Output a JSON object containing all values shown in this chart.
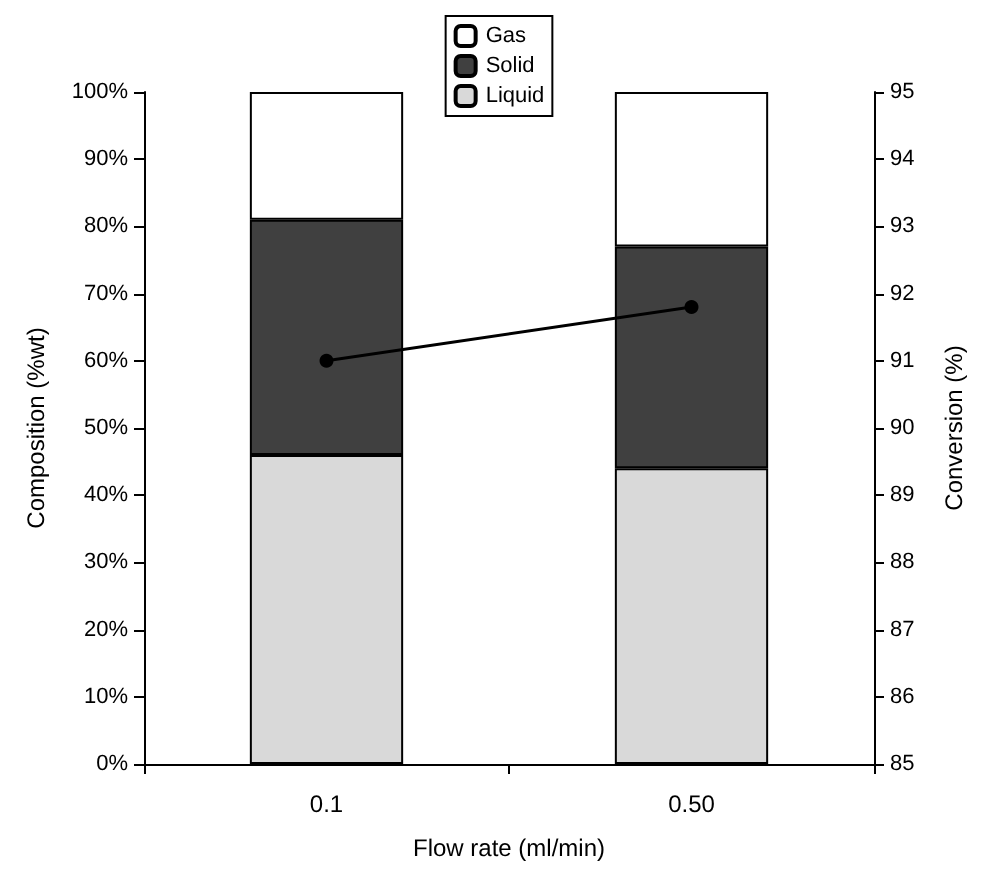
{
  "chart_data": {
    "type": "bar",
    "stacked": true,
    "xlabel": "Flow rate (ml/min)",
    "ylabel": "Composition (%wt)",
    "y2label": "Conversion (%)",
    "categories": [
      "0.1",
      "0.50"
    ],
    "series": [
      {
        "name": "Liquid",
        "color": "#d9d9d9",
        "values": [
          46,
          44
        ]
      },
      {
        "name": "Solid",
        "color": "#404040",
        "values": [
          35,
          33
        ]
      },
      {
        "name": "Gas",
        "color": "#ffffff",
        "values": [
          19,
          23
        ]
      },
      {
        "type": "line",
        "axis": "y2",
        "color": "#000000",
        "values": [
          91.0,
          91.8
        ],
        "marker": "circle"
      }
    ],
    "ylim": [
      0,
      100
    ],
    "yticks": [
      {
        "value": 0,
        "label": "0%"
      },
      {
        "value": 10,
        "label": "10%"
      },
      {
        "value": 20,
        "label": "20%"
      },
      {
        "value": 30,
        "label": "30%"
      },
      {
        "value": 40,
        "label": "40%"
      },
      {
        "value": 50,
        "label": "50%"
      },
      {
        "value": 60,
        "label": "60%"
      },
      {
        "value": 70,
        "label": "70%"
      },
      {
        "value": 80,
        "label": "80%"
      },
      {
        "value": 90,
        "label": "90%"
      },
      {
        "value": 100,
        "label": "100%"
      }
    ],
    "y2lim": [
      85,
      95
    ],
    "y2ticks": [
      85,
      86,
      87,
      88,
      89,
      90,
      91,
      92,
      93,
      94,
      95
    ],
    "legend": "top",
    "grid": false
  }
}
